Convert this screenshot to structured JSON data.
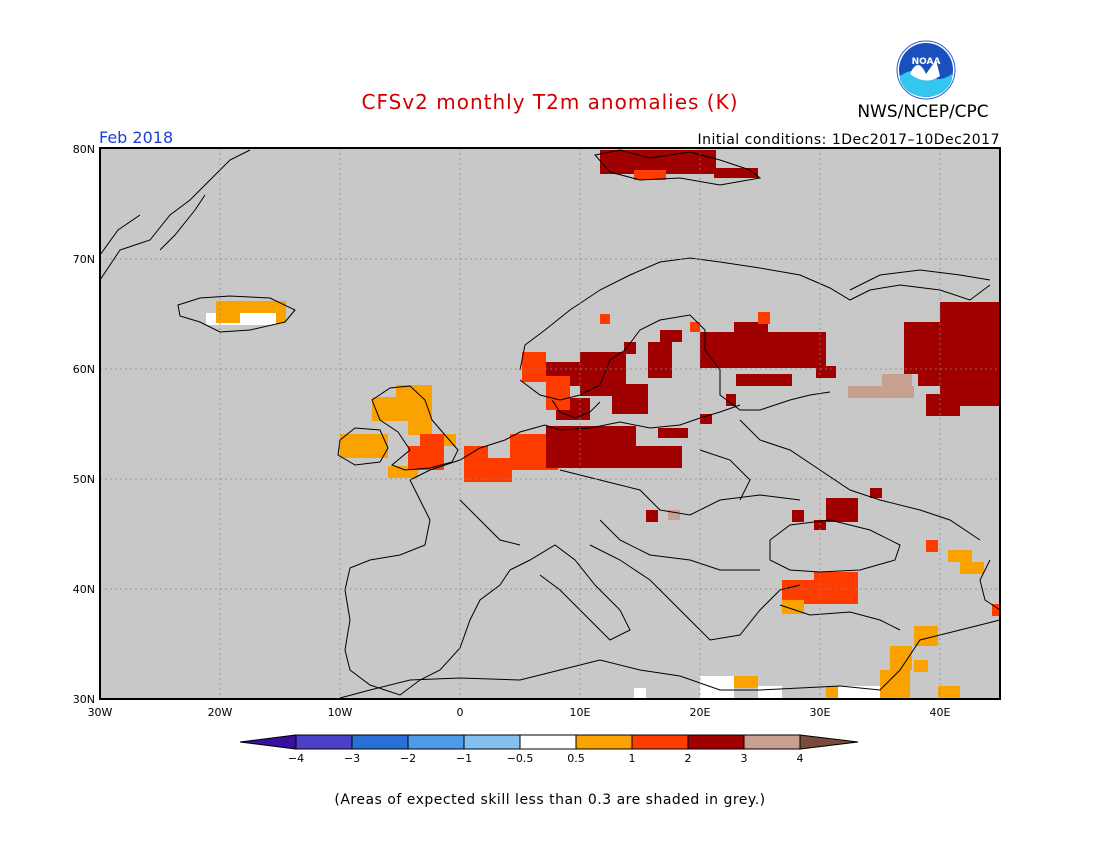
{
  "header": {
    "title": "CFSv2 monthly T2m anomalies (K)",
    "agency": "NWS/NCEP/CPC",
    "logo_text": "NOAA",
    "month": "Feb 2018",
    "initial_conditions": "Initial conditions: 1Dec2017–10Dec2017"
  },
  "axes": {
    "lat_ticks": [
      "80N",
      "70N",
      "60N",
      "50N",
      "40N",
      "30N"
    ],
    "lon_ticks": [
      "30W",
      "20W",
      "10W",
      "0",
      "10E",
      "20E",
      "30E",
      "40E"
    ]
  },
  "colorbar": {
    "labels": [
      "−4",
      "−3",
      "−2",
      "−1",
      "−0.5",
      "0.5",
      "1",
      "2",
      "3",
      "4"
    ],
    "colors": {
      "lt_m4": "#3a0ea0",
      "m4_m3": "#4b40c8",
      "m3_m2": "#2a6fd6",
      "m2_m1": "#4f9ae8",
      "m1_m05": "#84c0f0",
      "m05_05": "#ffffff",
      "p05_1": "#f9a200",
      "p1_2": "#ff3c00",
      "p2_3": "#a10000",
      "p3_4": "#c8a090",
      "gt_4": "#7a4a3a"
    }
  },
  "map_colors": {
    "background_grey": "#c8c8c8",
    "coast": "#000000"
  },
  "footnote": "(Areas of expected skill less than 0.3 are shaded in grey.)"
}
